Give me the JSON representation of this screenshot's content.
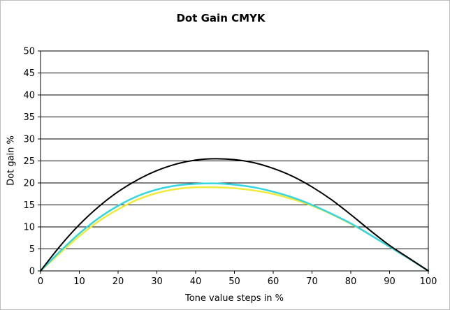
{
  "chart_data": {
    "type": "line",
    "title": "Dot Gain CMYK",
    "xlabel": "Tone value steps in %",
    "ylabel": "Dot gain %",
    "xlim": [
      0,
      100
    ],
    "ylim": [
      0,
      50
    ],
    "x_ticks": [
      "0",
      "10",
      "20",
      "30",
      "40",
      "50",
      "60",
      "70",
      "80",
      "90",
      "100"
    ],
    "y_ticks": [
      "0",
      "5",
      "10",
      "15",
      "20",
      "25",
      "30",
      "35",
      "40",
      "45",
      "50"
    ],
    "grid": "horizontal",
    "legend": "none",
    "x": [
      0,
      5,
      10,
      15,
      20,
      25,
      30,
      35,
      40,
      45,
      50,
      55,
      60,
      65,
      70,
      75,
      80,
      85,
      90,
      95,
      100
    ],
    "series": [
      {
        "color": "#000000",
        "values": [
          0,
          5.6,
          10.5,
          14.6,
          18.0,
          20.7,
          22.8,
          24.3,
          25.2,
          25.5,
          25.3,
          24.6,
          23.3,
          21.5,
          19.1,
          16.2,
          12.8,
          9.2,
          5.8,
          2.9,
          0
        ]
      },
      {
        "color": "#33d6e0",
        "values": [
          0,
          4.4,
          8.5,
          12.0,
          14.8,
          17.0,
          18.5,
          19.4,
          19.8,
          19.9,
          19.6,
          19.0,
          18.0,
          16.7,
          15.0,
          13.0,
          10.8,
          8.2,
          5.5,
          2.8,
          0
        ]
      },
      {
        "color": "#f0ea3a",
        "values": [
          0,
          4.0,
          7.9,
          11.3,
          14.0,
          16.2,
          17.7,
          18.6,
          19.0,
          19.0,
          18.8,
          18.3,
          17.5,
          16.3,
          14.8,
          12.9,
          10.7,
          8.2,
          5.5,
          2.8,
          0
        ]
      }
    ]
  }
}
